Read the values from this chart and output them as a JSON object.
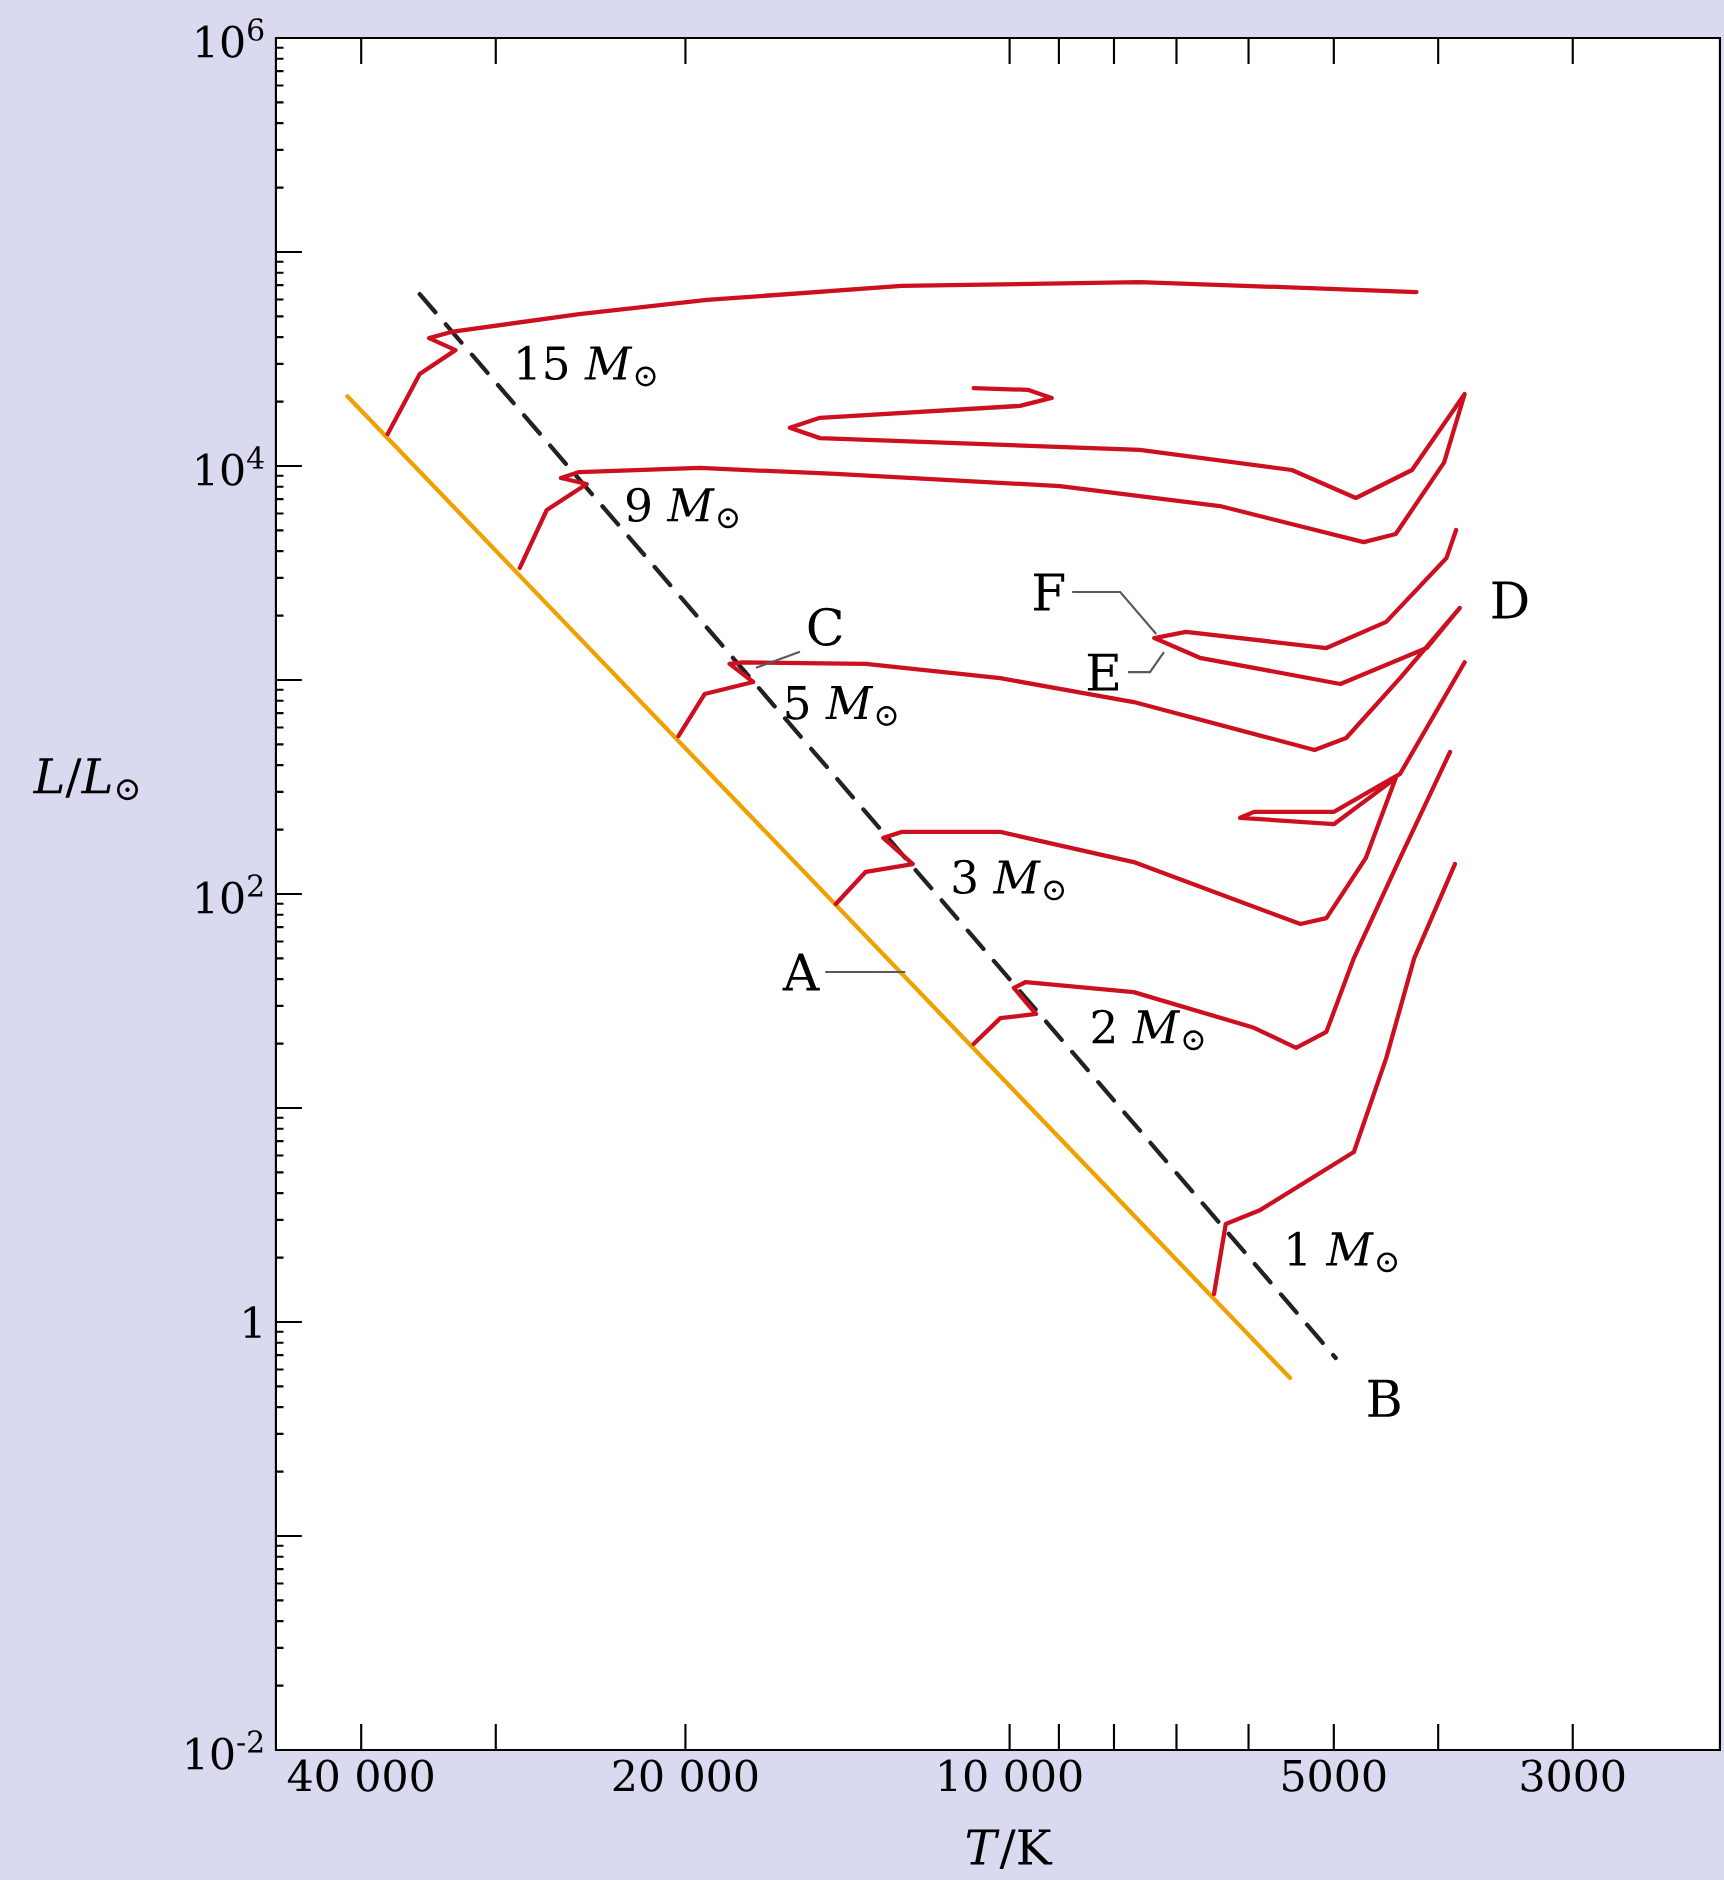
{
  "chart_data": {
    "type": "line",
    "xlabel": "*T*/K",
    "ylabel": "*L*/*L*$_{⊙}$",
    "log": "xy",
    "xlim": [
      48000,
      2190
    ],
    "ylim": [
      0.01,
      1000000
    ],
    "xticks": [
      {
        "value": 40000,
        "label": "40 000"
      },
      {
        "value": 30000,
        "label": null
      },
      {
        "value": 20000,
        "label": "20 000"
      },
      {
        "value": 10000,
        "label": "10 000"
      },
      {
        "value": 9000,
        "label": null
      },
      {
        "value": 8000,
        "label": null
      },
      {
        "value": 7000,
        "label": null
      },
      {
        "value": 6000,
        "label": null
      },
      {
        "value": 5000,
        "label": "5000"
      },
      {
        "value": 4000,
        "label": null
      },
      {
        "value": 3000,
        "label": "3000"
      }
    ],
    "yticks": [
      {
        "value": 0.01,
        "label": "10$^{-2}$"
      },
      {
        "value": 0.1,
        "label": null
      },
      1,
      {
        "value": 10,
        "label": null
      },
      {
        "value": 100,
        "label": "10$^{2}$"
      },
      {
        "value": 1000,
        "label": null
      },
      {
        "value": 10000,
        "label": "10$^{4}$"
      },
      {
        "value": 100000,
        "label": null
      },
      {
        "value": 1000000,
        "label": "10$^{6}$"
      }
    ],
    "series": [
      {
        "color": "#f0a000",
        "line_style": "solid",
        "x": [
          41200,
          5490
        ],
        "values": [
          21200,
          0.547
        ]
      },
      {
        "color": "#222222",
        "line_style": "dashed",
        "x": [
          35300,
          4980
        ],
        "values": [
          63600,
          0.679
        ]
      },
      {
        "name": "15 *M*$_{⊙}$",
        "color": "#cc1020",
        "x": [
          37800,
          35300,
          32700,
          34600,
          33000,
          25100,
          19100,
          12600,
          7570,
          4190
        ],
        "values": [
          14100,
          26900,
          34800,
          39600,
          42300,
          51300,
          59700,
          69400,
          72400,
          65000
        ]
      },
      {
        "name": "9 *M*$_{⊙}$",
        "color": "#cc1020",
        "x": [
          28500,
          26900,
          24700,
          26100,
          25100,
          19400,
          14500,
          8980,
          6380,
          4690,
          4380,
          3950,
          3780,
          4230,
          4770,
          5470,
          7570,
          15000,
          16000,
          15000,
          9780,
          9140,
          9620,
          10800
        ],
        "values": [
          3340,
          6230,
          8240,
          8790,
          9370,
          9790,
          9180,
          8060,
          6500,
          4410,
          4810,
          10400,
          21700,
          9580,
          7090,
          9580,
          11900,
          13500,
          15100,
          16800,
          19100,
          20800,
          22700,
          23100
        ]
      },
      {
        "name": "5 *M*$_{⊙}$",
        "color": "#cc1020",
        "x": [
          20300,
          19200,
          17300,
          18200,
          17700,
          13600,
          10200,
          7670,
          5210,
          4870,
          4340,
          3820,
          4100,
          4930,
          6660,
          7340,
          6860,
          5080,
          4470,
          3930,
          3850
        ],
        "values": [
          547,
          860,
          979,
          1190,
          1210,
          1190,
          1020,
          789,
          471,
          536,
          1020,
          2170,
          1410,
          958,
          1270,
          1570,
          1680,
          1410,
          1870,
          3720,
          5020
        ]
      },
      {
        "name": "3 *M*$_{⊙}$",
        "color": "#cc1020",
        "x": [
          14500,
          13600,
          12300,
          13100,
          12600,
          10200,
          7670,
          5370,
          5080,
          4670,
          4380,
          5000,
          6110,
          5930,
          5000,
          4340,
          3780
        ],
        "values": [
          89.8,
          127,
          138,
          183,
          195,
          195,
          141,
          72.4,
          77.2,
          147,
          348,
          212,
          227,
          242,
          242,
          364,
          1210
        ]
      },
      {
        "name": "2 *M*$_{⊙}$",
        "color": "#cc1020",
        "x": [
          10800,
          10200,
          9450,
          9910,
          9660,
          7670,
          5930,
          5420,
          5080,
          4790,
          4340,
          3900
        ],
        "values": [
          19.9,
          26.3,
          27.5,
          36.4,
          38.8,
          34.8,
          23.7,
          19.1,
          22.7,
          50.2,
          147,
          461
        ]
      },
      {
        "name": "1 *M*$_{⊙}$",
        "color": "#cc1020",
        "x": [
          6460,
          6300,
          5850,
          4790,
          4470,
          4210,
          3860
        ],
        "values": [
          1.35,
          2.87,
          3.34,
          6.23,
          17.1,
          50.2,
          138
        ]
      }
    ],
    "annotations": [
      {
        "text": "A",
        "x": 12500,
        "y": 43.2
      },
      {
        "text": "B",
        "x": 4980,
        "y": 0.679
      },
      {
        "text": "C",
        "x": 17200,
        "y": 1140
      },
      {
        "text": "D",
        "x": 3820,
        "y": 2170
      },
      {
        "text": "E",
        "x": 7190,
        "y": 1350
      },
      {
        "text": "F",
        "x": 7310,
        "y": 1640
      }
    ]
  }
}
